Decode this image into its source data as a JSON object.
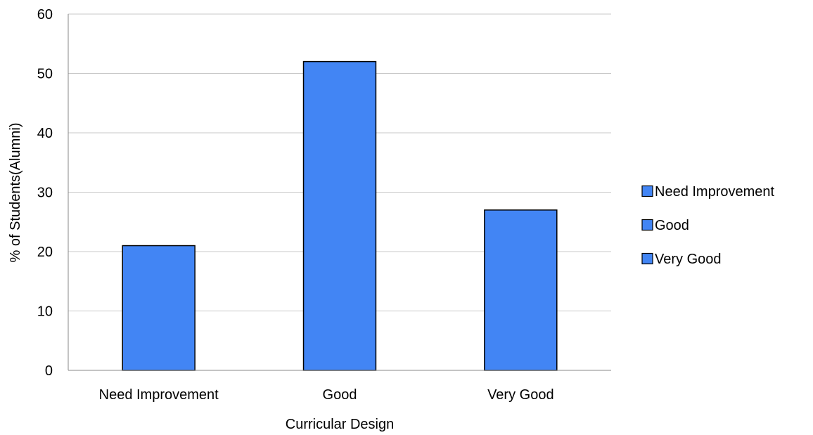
{
  "chart_data": {
    "type": "bar",
    "categories": [
      "Need Improvement",
      "Good",
      "Very Good"
    ],
    "values": [
      21,
      52,
      27
    ],
    "xlabel": "Curricular Design",
    "ylabel": "% of Students(Alumni)",
    "ylim": [
      0,
      60
    ],
    "yticks": [
      0,
      10,
      20,
      30,
      40,
      50,
      60
    ],
    "grid": true,
    "legend_position": "right",
    "legend_entries": [
      "Need Improvement",
      "Good",
      "Very Good"
    ],
    "colors": {
      "bar": "#4285F4",
      "bar_border": "#000000",
      "grid": "#C8C8C8"
    }
  }
}
